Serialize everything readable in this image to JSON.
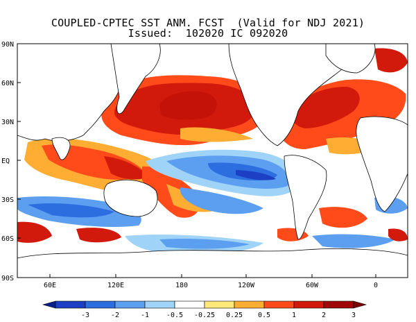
{
  "title": {
    "line1": "COUPLED-CPTEC SST ANM. FCST  (Valid for NDJ 2021)",
    "line2": "Issued:  102020 IC 092020"
  },
  "axes": {
    "lat_labels": [
      "90N",
      "60N",
      "30N",
      "EQ",
      "30S",
      "60S",
      "90S"
    ],
    "lon_labels": [
      "60E",
      "120E",
      "180",
      "120W",
      "60W",
      "0"
    ]
  },
  "colorbar": {
    "labels": [
      "-3",
      "-2",
      "-1",
      "-0.5",
      "-0.25",
      "0.25",
      "0.5",
      "1",
      "2",
      "3"
    ],
    "colors": [
      "#1c3fc4",
      "#2c6ee0",
      "#5c9ff0",
      "#9fd3f8",
      "#ffffff",
      "#ffe97a",
      "#ffad33",
      "#ff4a1a",
      "#d21a0c",
      "#a00808"
    ]
  },
  "colors": {
    "land": "#ffffff",
    "coast": "#000000",
    "neutral_ocean": "#ffffff",
    "warm_light": "#ffe97a",
    "warm_orange": "#ffad33",
    "warm_red": "#ff4a1a",
    "warm_dark": "#d21a0c",
    "cool_light": "#9fd3f8",
    "cool_mid": "#5c9ff0",
    "cool_strong": "#2c6ee0"
  }
}
